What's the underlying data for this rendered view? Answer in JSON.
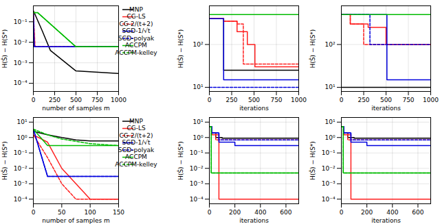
{
  "chart_data": [
    {
      "type": "line",
      "xlabel": "number of samples m",
      "ylabel": "H(Ŝ) − H(S*)",
      "xlim": [
        0,
        1000
      ],
      "ylim": [
        4e-05,
        0.6
      ],
      "xticks": [
        0,
        250,
        500,
        750,
        1000
      ],
      "yticks": [
        {
          "value": 0.0001,
          "label": "10⁻⁴"
        },
        {
          "value": 0.001,
          "label": "10⁻³"
        },
        {
          "value": 0.01,
          "label": "10⁻²"
        },
        {
          "value": 0.1,
          "label": "10⁻¹"
        }
      ],
      "log": "y",
      "grid": true,
      "legend": "upper right",
      "series": [
        {
          "name": "MNP",
          "color": "#000000",
          "line_style": "solid",
          "x": [
            0,
            100,
            200,
            500,
            1000
          ],
          "values": [
            0.35,
            0.04,
            0.004,
            0.0004,
            0.0003
          ]
        },
        {
          "name": "CG-LS",
          "color": "#ff2020",
          "line_style": "solid",
          "x": [
            0,
            15,
            100,
            1000
          ],
          "values": [
            0.3,
            0.006,
            0.006,
            0.006
          ]
        },
        {
          "name": "CG-2/(t+2)",
          "color": "#ff2020",
          "line_style": "dashed",
          "x": [
            0,
            20,
            100,
            1000
          ],
          "values": [
            0.3,
            0.006,
            0.006,
            0.006
          ]
        },
        {
          "name": "SGD-1/√t",
          "color": "#0000dd",
          "line_style": "solid",
          "x": [
            0,
            10,
            30,
            1000
          ],
          "values": [
            0.25,
            0.006,
            0.006,
            0.006
          ]
        },
        {
          "name": "SGD-polyak",
          "color": "#0000dd",
          "line_style": "dashed",
          "x": [
            0,
            10,
            30,
            1000
          ],
          "values": [
            0.25,
            0.006,
            0.006,
            0.006
          ]
        },
        {
          "name": "ACCPM",
          "color": "#00bb00",
          "line_style": "solid",
          "x": [
            0,
            50,
            500,
            1000
          ],
          "values": [
            0.28,
            0.28,
            0.006,
            0.006
          ]
        },
        {
          "name": "ACCPM-kelley",
          "color": "#00bb00",
          "line_style": "dashed",
          "x": [
            0,
            50,
            500,
            1000
          ],
          "values": [
            0.28,
            0.28,
            0.006,
            0.006
          ]
        }
      ]
    },
    {
      "type": "line",
      "xlabel": "iterations",
      "ylabel": "H(Ŝ) − H(S*)",
      "xlim": [
        0,
        1000
      ],
      "ylim": [
        8,
        800.0
      ],
      "xticks": [
        0,
        250,
        500,
        750,
        1000
      ],
      "yticks": [
        {
          "value": 10,
          "label": "10¹"
        },
        {
          "value": 100,
          "label": "10²"
        }
      ],
      "log": "y",
      "grid": true,
      "series": [
        {
          "color": "#000000",
          "line_style": "solid",
          "type": "step",
          "x": [
            0,
            100,
            160,
            1000
          ],
          "values": [
            400.0,
            400.0,
            25.0,
            25.0
          ]
        },
        {
          "color": "#ff2020",
          "line_style": "solid",
          "type": "step",
          "x": [
            0,
            160,
            310,
            425,
            510,
            1000
          ],
          "values": [
            400.0,
            350.0,
            200.0,
            100.0,
            30.0,
            30.0
          ]
        },
        {
          "color": "#ff2020",
          "line_style": "dashed",
          "type": "step",
          "x": [
            0,
            160,
            310,
            380,
            1000
          ],
          "values": [
            400.0,
            350.0,
            300.0,
            35.0,
            35.0
          ]
        },
        {
          "color": "#0000dd",
          "line_style": "solid",
          "type": "step",
          "x": [
            0,
            160,
            160,
            860,
            860,
            1000
          ],
          "values": [
            400.0,
            400.0,
            15.0,
            15.0,
            15.0,
            15.0
          ]
        },
        {
          "color": "#0000dd",
          "line_style": "dashed",
          "x": [
            0,
            1000
          ],
          "values": [
            10.0,
            10.0
          ]
        },
        {
          "color": "#00bb00",
          "line_style": "solid",
          "x": [
            0,
            1000
          ],
          "values": [
            500.0,
            500.0
          ]
        }
      ]
    },
    {
      "type": "line",
      "xlabel": "iterations",
      "ylabel": "H(Ŝ) − H(S*)",
      "xlim": [
        0,
        1000
      ],
      "ylim": [
        8,
        800.0
      ],
      "xticks": [
        0,
        250,
        500,
        750,
        1000
      ],
      "yticks": [
        {
          "value": 10,
          "label": "10¹"
        },
        {
          "value": 100,
          "label": "10²"
        }
      ],
      "log": "y",
      "grid": true,
      "series": [
        {
          "color": "#000000",
          "line_style": "solid",
          "x": [
            0,
            1000
          ],
          "values": [
            10.0,
            10.0
          ]
        },
        {
          "color": "#ff2020",
          "line_style": "solid",
          "type": "step",
          "x": [
            0,
            100,
            300,
            500,
            580,
            1000
          ],
          "values": [
            500.0,
            300.0,
            250.0,
            100.0,
            100.0,
            100.0
          ]
        },
        {
          "color": "#ff2020",
          "line_style": "dashed",
          "type": "step",
          "x": [
            0,
            100,
            250,
            320,
            500,
            1000
          ],
          "values": [
            500.0,
            300.0,
            100.0,
            100.0,
            100.0,
            100.0
          ]
        },
        {
          "color": "#0000dd",
          "line_style": "solid",
          "type": "step",
          "x": [
            0,
            100,
            510,
            510,
            1000
          ],
          "values": [
            500.0,
            500.0,
            15.0,
            15.0,
            15.0
          ]
        },
        {
          "color": "#0000dd",
          "line_style": "dashed",
          "type": "step",
          "x": [
            0,
            100,
            320,
            510,
            1000
          ],
          "values": [
            500.0,
            500.0,
            100.0,
            100.0,
            100.0
          ]
        },
        {
          "color": "#00bb00",
          "line_style": "solid",
          "x": [
            0,
            1000
          ],
          "values": [
            500.0,
            500.0
          ]
        }
      ]
    },
    {
      "type": "line",
      "xlabel": "number of samples m",
      "ylabel": "H(Ŝ) − H(S*)",
      "xlim": [
        0,
        150
      ],
      "ylim": [
        5e-05,
        20.0
      ],
      "xticks": [
        0,
        50,
        100,
        150
      ],
      "yticks": [
        {
          "value": 0.0001,
          "label": "10⁻⁴"
        },
        {
          "value": 0.001,
          "label": "10⁻³"
        },
        {
          "value": 0.01,
          "label": "10⁻²"
        },
        {
          "value": 0.1,
          "label": "10⁻¹"
        },
        {
          "value": 1,
          "label": "10⁰"
        },
        {
          "value": 10,
          "label": "10¹"
        }
      ],
      "log": "y",
      "grid": true,
      "legend": "upper right",
      "series": [
        {
          "name": "MNP",
          "color": "#000000",
          "line_style": "solid",
          "x": [
            0,
            25,
            50,
            75,
            100,
            125,
            150
          ],
          "values": [
            2.5,
            1.5,
            1.0,
            0.7,
            0.6,
            0.6,
            0.6
          ]
        },
        {
          "name": "CG-LS",
          "color": "#ff2020",
          "line_style": "solid",
          "x": [
            0,
            25,
            50,
            75,
            100,
            150
          ],
          "values": [
            1.5,
            0.5,
            0.01,
            0.001,
            0.0001,
            0.0001
          ]
        },
        {
          "name": "CG-2/(t+2)",
          "color": "#ff2020",
          "line_style": "dashed",
          "x": [
            0,
            25,
            50,
            75,
            100,
            150
          ],
          "values": [
            1.5,
            0.05,
            0.001,
            0.0001,
            0.0001,
            0.0001
          ]
        },
        {
          "name": "SGD-1/√t",
          "color": "#0000dd",
          "line_style": "solid",
          "x": [
            0,
            25,
            50,
            100,
            150
          ],
          "values": [
            3.5,
            0.003,
            0.003,
            0.003,
            0.003
          ]
        },
        {
          "name": "SGD-polyak",
          "color": "#0000dd",
          "line_style": "dashed",
          "x": [
            0,
            25,
            50,
            100,
            150
          ],
          "values": [
            3.5,
            0.003,
            0.003,
            0.003,
            0.003
          ]
        },
        {
          "name": "ACCPM",
          "color": "#00bb00",
          "line_style": "solid",
          "x": [
            0,
            25,
            50,
            100,
            150
          ],
          "values": [
            3.5,
            0.3,
            0.3,
            0.3,
            0.3
          ]
        },
        {
          "name": "ACCPM-kelley",
          "color": "#00bb00",
          "line_style": "dashed",
          "x": [
            0,
            25,
            50,
            100,
            150
          ],
          "values": [
            3.5,
            1.5,
            0.8,
            0.4,
            0.3
          ]
        }
      ]
    },
    {
      "type": "line",
      "xlabel": "iterations",
      "ylabel": "H(Ŝ) − H(S*)",
      "xlim": [
        0,
        700
      ],
      "ylim": [
        5e-05,
        20.0
      ],
      "xticks": [
        0,
        200,
        400,
        600
      ],
      "yticks": [
        {
          "value": 0.0001,
          "label": "10⁻⁴"
        },
        {
          "value": 0.001,
          "label": "10⁻³"
        },
        {
          "value": 0.01,
          "label": "10⁻²"
        },
        {
          "value": 0.1,
          "label": "10⁻¹"
        },
        {
          "value": 1,
          "label": "10⁰"
        },
        {
          "value": 10,
          "label": "10¹"
        }
      ],
      "log": "y",
      "grid": true,
      "series": [
        {
          "color": "#000000",
          "line_style": "solid",
          "type": "step",
          "x": [
            0,
            20,
            50,
            100,
            700
          ],
          "values": [
            5.0,
            2.0,
            1.0,
            0.9,
            0.9
          ]
        },
        {
          "color": "#ff2020",
          "line_style": "solid",
          "type": "step",
          "x": [
            0,
            20,
            75,
            700
          ],
          "values": [
            5.0,
            1.5,
            0.0001,
            0.0001
          ]
        },
        {
          "color": "#ff2020",
          "line_style": "dashed",
          "type": "step",
          "x": [
            0,
            20,
            50,
            350,
            700
          ],
          "values": [
            5.0,
            2.0,
            0.7,
            0.7,
            0.7
          ]
        },
        {
          "color": "#0000dd",
          "line_style": "solid",
          "type": "step",
          "x": [
            0,
            20,
            75,
            200,
            700
          ],
          "values": [
            5.0,
            2.0,
            0.5,
            0.3,
            0.3
          ]
        },
        {
          "color": "#0000dd",
          "line_style": "dashed",
          "type": "step",
          "x": [
            0,
            20,
            75,
            350,
            700
          ],
          "values": [
            5.0,
            2.0,
            0.7,
            0.7,
            0.7
          ]
        },
        {
          "color": "#00bb00",
          "line_style": "solid",
          "type": "step",
          "x": [
            0,
            15,
            700
          ],
          "values": [
            5.0,
            0.005,
            0.005
          ]
        },
        {
          "color": "#00bb00",
          "line_style": "dashed",
          "type": "step",
          "x": [
            0,
            15,
            700
          ],
          "values": [
            5.0,
            0.005,
            0.005
          ]
        }
      ]
    },
    {
      "type": "line",
      "xlabel": "iterations",
      "ylabel": "H(Ŝ) − H(S*)",
      "xlim": [
        0,
        700
      ],
      "ylim": [
        5e-05,
        20.0
      ],
      "xticks": [
        0,
        200,
        400,
        600
      ],
      "yticks": [
        {
          "value": 0.0001,
          "label": "10⁻⁴"
        },
        {
          "value": 0.001,
          "label": "10⁻³"
        },
        {
          "value": 0.01,
          "label": "10⁻²"
        },
        {
          "value": 0.1,
          "label": "10⁻¹"
        },
        {
          "value": 1,
          "label": "10⁰"
        },
        {
          "value": 10,
          "label": "10¹"
        }
      ],
      "log": "y",
      "grid": true,
      "series": [
        {
          "color": "#000000",
          "line_style": "solid",
          "type": "step",
          "x": [
            0,
            20,
            50,
            100,
            700
          ],
          "values": [
            5.0,
            2.0,
            1.0,
            0.9,
            0.9
          ]
        },
        {
          "color": "#ff2020",
          "line_style": "solid",
          "type": "step",
          "x": [
            0,
            20,
            75,
            700
          ],
          "values": [
            5.0,
            1.5,
            0.0001,
            0.0001
          ]
        },
        {
          "color": "#ff2020",
          "line_style": "dashed",
          "type": "step",
          "x": [
            0,
            20,
            50,
            350,
            700
          ],
          "values": [
            5.0,
            2.0,
            0.7,
            0.7,
            0.7
          ]
        },
        {
          "color": "#0000dd",
          "line_style": "solid",
          "type": "step",
          "x": [
            0,
            20,
            75,
            200,
            700
          ],
          "values": [
            5.0,
            2.0,
            0.5,
            0.3,
            0.3
          ]
        },
        {
          "color": "#0000dd",
          "line_style": "dashed",
          "type": "step",
          "x": [
            0,
            20,
            75,
            350,
            700
          ],
          "values": [
            5.0,
            2.0,
            0.7,
            0.7,
            0.7
          ]
        },
        {
          "color": "#00bb00",
          "line_style": "solid",
          "type": "step",
          "x": [
            0,
            15,
            700
          ],
          "values": [
            5.0,
            0.005,
            0.005
          ]
        },
        {
          "color": "#00bb00",
          "line_style": "dashed",
          "type": "step",
          "x": [
            0,
            15,
            700
          ],
          "values": [
            5.0,
            0.005,
            0.005
          ]
        }
      ]
    }
  ]
}
